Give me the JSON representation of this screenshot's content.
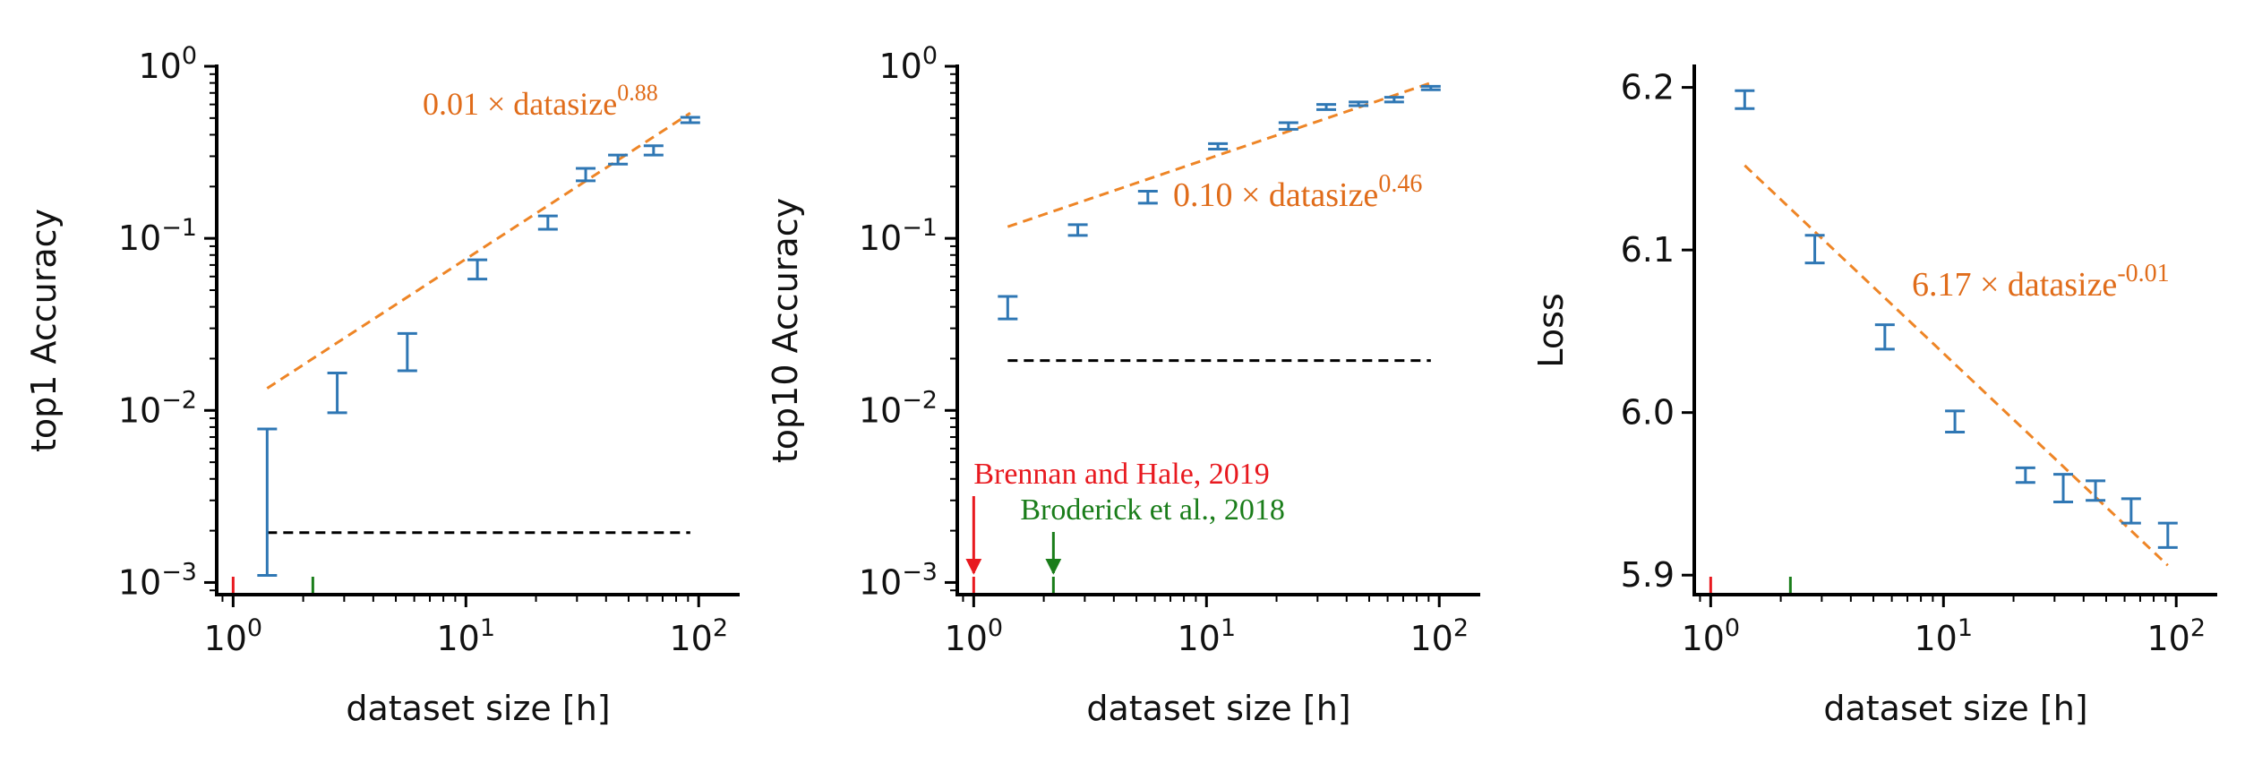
{
  "colors": {
    "errorbar": "#2f77b4",
    "fit": "#ee8526",
    "baseline": "#000000",
    "ref_red": "#e8191f",
    "ref_green": "#1a7d1a",
    "axis": "#000000"
  },
  "chart_data": [
    {
      "type": "errorbar",
      "yscale": "log",
      "xscale": "log",
      "xlabel": "dataset size [h]",
      "ylabel": "top1 Accuracy",
      "xlim": [
        0.85,
        150
      ],
      "ylim": [
        0.00085,
        1.0
      ],
      "x_ticks": [
        1,
        10,
        100
      ],
      "x_tick_labels": [
        {
          "base": "10",
          "exp": "0"
        },
        {
          "base": "10",
          "exp": "1"
        },
        {
          "base": "10",
          "exp": "2"
        }
      ],
      "y_ticks": [
        0.001,
        0.01,
        0.1,
        1
      ],
      "y_tick_labels": [
        {
          "base": "10",
          "exp": "−3"
        },
        {
          "base": "10",
          "exp": "−2"
        },
        {
          "base": "10",
          "exp": "−1"
        },
        {
          "base": "10",
          "exp": "0"
        }
      ],
      "points": [
        {
          "x": 1.4,
          "low": 0.0011,
          "high": 0.0078
        },
        {
          "x": 2.8,
          "low": 0.0097,
          "high": 0.0165
        },
        {
          "x": 5.6,
          "low": 0.017,
          "high": 0.028
        },
        {
          "x": 11.2,
          "low": 0.058,
          "high": 0.075
        },
        {
          "x": 22.5,
          "low": 0.113,
          "high": 0.135
        },
        {
          "x": 32.7,
          "low": 0.216,
          "high": 0.255
        },
        {
          "x": 45,
          "low": 0.27,
          "high": 0.305
        },
        {
          "x": 64,
          "low": 0.305,
          "high": 0.345
        },
        {
          "x": 92,
          "low": 0.47,
          "high": 0.505
        }
      ],
      "fit": {
        "coef": 0.01,
        "exp": 0.88,
        "x_range": [
          1.4,
          92
        ],
        "label_main": "0.01 × datasize",
        "label_exp": "0.88"
      },
      "baseline": {
        "y": 0.00195,
        "x_range": [
          1.4,
          92
        ]
      },
      "ref_ticks": [
        {
          "x": 1.0,
          "color_key": "ref_red"
        },
        {
          "x": 2.2,
          "color_key": "ref_green"
        }
      ],
      "references": []
    },
    {
      "type": "errorbar",
      "yscale": "log",
      "xscale": "log",
      "xlabel": "dataset size [h]",
      "ylabel": "top10 Accuracy",
      "xlim": [
        0.85,
        150
      ],
      "ylim": [
        0.00085,
        1.0
      ],
      "x_ticks": [
        1,
        10,
        100
      ],
      "x_tick_labels": [
        {
          "base": "10",
          "exp": "0"
        },
        {
          "base": "10",
          "exp": "1"
        },
        {
          "base": "10",
          "exp": "2"
        }
      ],
      "y_ticks": [
        0.001,
        0.01,
        0.1,
        1
      ],
      "y_tick_labels": [
        {
          "base": "10",
          "exp": "−3"
        },
        {
          "base": "10",
          "exp": "−2"
        },
        {
          "base": "10",
          "exp": "−1"
        },
        {
          "base": "10",
          "exp": "0"
        }
      ],
      "points": [
        {
          "x": 1.4,
          "low": 0.034,
          "high": 0.046
        },
        {
          "x": 2.8,
          "low": 0.104,
          "high": 0.12
        },
        {
          "x": 5.6,
          "low": 0.16,
          "high": 0.188
        },
        {
          "x": 11.2,
          "low": 0.33,
          "high": 0.355
        },
        {
          "x": 22.5,
          "low": 0.43,
          "high": 0.47
        },
        {
          "x": 32.7,
          "low": 0.56,
          "high": 0.6
        },
        {
          "x": 45,
          "low": 0.59,
          "high": 0.62
        },
        {
          "x": 64,
          "low": 0.62,
          "high": 0.66
        },
        {
          "x": 92,
          "low": 0.73,
          "high": 0.765
        }
      ],
      "fit": {
        "coef": 0.1,
        "exp": 0.46,
        "x_range": [
          1.4,
          92
        ],
        "label_main": "0.10 × datasize",
        "label_exp": "0.46"
      },
      "baseline": {
        "y": 0.0195,
        "x_range": [
          1.4,
          92
        ]
      },
      "ref_ticks": [
        {
          "x": 1.0,
          "color_key": "ref_red"
        },
        {
          "x": 2.2,
          "color_key": "ref_green"
        }
      ],
      "references": [
        {
          "label": "Brennan and Hale, 2019",
          "x": 1.0,
          "color_key": "ref_red"
        },
        {
          "label": "Broderick et al., 2018",
          "x": 2.2,
          "color_key": "ref_green"
        }
      ]
    },
    {
      "type": "errorbar",
      "yscale": "linear",
      "xscale": "log",
      "xlabel": "dataset size [h]",
      "ylabel": "Loss",
      "xlim": [
        0.85,
        150
      ],
      "ylim": [
        5.888,
        6.213
      ],
      "x_ticks": [
        1,
        10,
        100
      ],
      "x_tick_labels": [
        {
          "base": "10",
          "exp": "0"
        },
        {
          "base": "10",
          "exp": "1"
        },
        {
          "base": "10",
          "exp": "2"
        }
      ],
      "y_ticks": [
        5.9,
        6.0,
        6.1,
        6.2
      ],
      "y_tick_labels": [
        {
          "base": "5.9",
          "exp": ""
        },
        {
          "base": "6.0",
          "exp": ""
        },
        {
          "base": "6.1",
          "exp": ""
        },
        {
          "base": "6.2",
          "exp": ""
        }
      ],
      "points": [
        {
          "x": 1.4,
          "low": 6.187,
          "high": 6.198
        },
        {
          "x": 2.8,
          "low": 6.092,
          "high": 6.109
        },
        {
          "x": 5.6,
          "low": 6.039,
          "high": 6.054
        },
        {
          "x": 11.2,
          "low": 5.988,
          "high": 6.001
        },
        {
          "x": 22.5,
          "low": 5.957,
          "high": 5.966
        },
        {
          "x": 32.7,
          "low": 5.945,
          "high": 5.962
        },
        {
          "x": 45,
          "low": 5.946,
          "high": 5.958
        },
        {
          "x": 64,
          "low": 5.932,
          "high": 5.947
        },
        {
          "x": 92,
          "low": 5.917,
          "high": 5.932
        }
      ],
      "fit": {
        "coef": 6.17,
        "exp": -0.01,
        "x_range": [
          1.4,
          92
        ],
        "y_range": [
          6.152,
          5.906
        ],
        "label_main": "6.17 × datasize",
        "label_exp": "-0.01"
      },
      "baseline": null,
      "ref_ticks": [
        {
          "x": 1.0,
          "color_key": "ref_red"
        },
        {
          "x": 2.2,
          "color_key": "ref_green"
        }
      ],
      "references": []
    }
  ]
}
